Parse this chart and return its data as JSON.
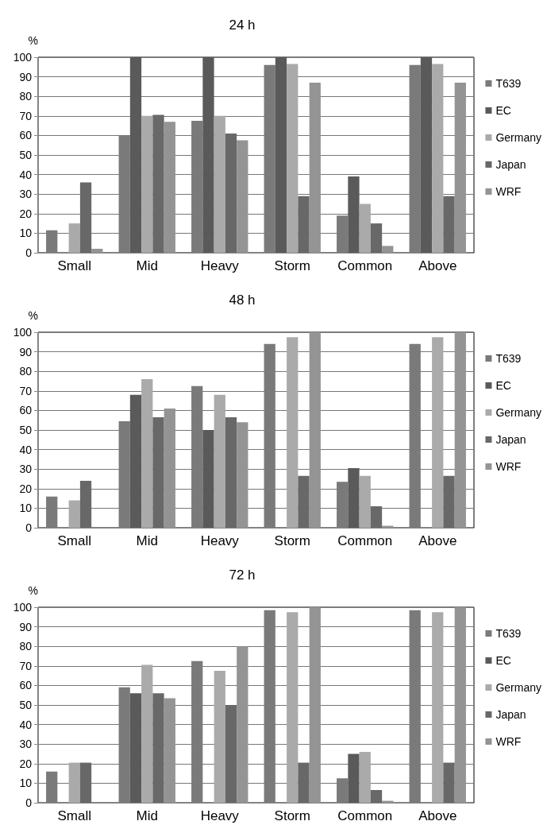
{
  "chart_data": [
    {
      "type": "bar",
      "title": "24 h",
      "ylabel": "%",
      "categories": [
        "Small",
        "Mid",
        "Heavy",
        "Storm",
        "Common",
        "Above"
      ],
      "ylim": [
        0,
        100
      ],
      "yticks": [
        0,
        10,
        20,
        30,
        40,
        50,
        60,
        70,
        80,
        90,
        100
      ],
      "grid": "y",
      "legend": "right",
      "series": [
        {
          "name": "T639",
          "color": "#7a7a7a",
          "values": [
            11.5,
            60,
            67.5,
            96,
            19,
            96
          ]
        },
        {
          "name": "EC",
          "color": "#5a5a5a",
          "values": [
            0,
            100,
            100,
            100,
            39,
            100
          ]
        },
        {
          "name": "Germany",
          "color": "#aaaaaa",
          "values": [
            15,
            70,
            70,
            96.5,
            25,
            96.5
          ]
        },
        {
          "name": "Japan",
          "color": "#686868",
          "values": [
            36,
            70.5,
            61,
            29,
            15,
            29
          ]
        },
        {
          "name": "WRF",
          "color": "#949494",
          "values": [
            2,
            67,
            57.5,
            87,
            3.5,
            87
          ]
        }
      ]
    },
    {
      "type": "bar",
      "title": "48 h",
      "ylabel": "%",
      "categories": [
        "Small",
        "Mid",
        "Heavy",
        "Storm",
        "Common",
        "Above"
      ],
      "ylim": [
        0,
        100
      ],
      "yticks": [
        0,
        10,
        20,
        30,
        40,
        50,
        60,
        70,
        80,
        90,
        100
      ],
      "grid": "y",
      "legend": "right",
      "series": [
        {
          "name": "T639",
          "color": "#7a7a7a",
          "values": [
            16,
            54.5,
            72.5,
            94,
            23.5,
            94
          ]
        },
        {
          "name": "EC",
          "color": "#5a5a5a",
          "values": [
            0,
            68,
            50,
            0,
            30.5,
            0
          ]
        },
        {
          "name": "Germany",
          "color": "#aaaaaa",
          "values": [
            14,
            76,
            68,
            97.5,
            26.5,
            97.5
          ]
        },
        {
          "name": "Japan",
          "color": "#686868",
          "values": [
            24,
            56.5,
            56.5,
            26.5,
            11,
            26.5
          ]
        },
        {
          "name": "WRF",
          "color": "#949494",
          "values": [
            0,
            61,
            54,
            100,
            1,
            100
          ]
        }
      ]
    },
    {
      "type": "bar",
      "title": "72 h",
      "ylabel": "%",
      "categories": [
        "Small",
        "Mid",
        "Heavy",
        "Storm",
        "Common",
        "Above"
      ],
      "ylim": [
        0,
        100
      ],
      "yticks": [
        0,
        10,
        20,
        30,
        40,
        50,
        60,
        70,
        80,
        90,
        100
      ],
      "grid": "y",
      "legend": "right",
      "series": [
        {
          "name": "T639",
          "color": "#7a7a7a",
          "values": [
            16,
            59,
            72.5,
            98.5,
            12.5,
            98.5
          ]
        },
        {
          "name": "EC",
          "color": "#5a5a5a",
          "values": [
            0,
            56,
            0,
            0,
            25,
            0
          ]
        },
        {
          "name": "Germany",
          "color": "#aaaaaa",
          "values": [
            20.5,
            70.5,
            67.5,
            97.5,
            26,
            97.5
          ]
        },
        {
          "name": "Japan",
          "color": "#686868",
          "values": [
            20.5,
            56,
            50,
            20.5,
            6.5,
            20.5
          ]
        },
        {
          "name": "WRF",
          "color": "#949494",
          "values": [
            0,
            53.5,
            80,
            100,
            1,
            100
          ]
        }
      ]
    }
  ]
}
